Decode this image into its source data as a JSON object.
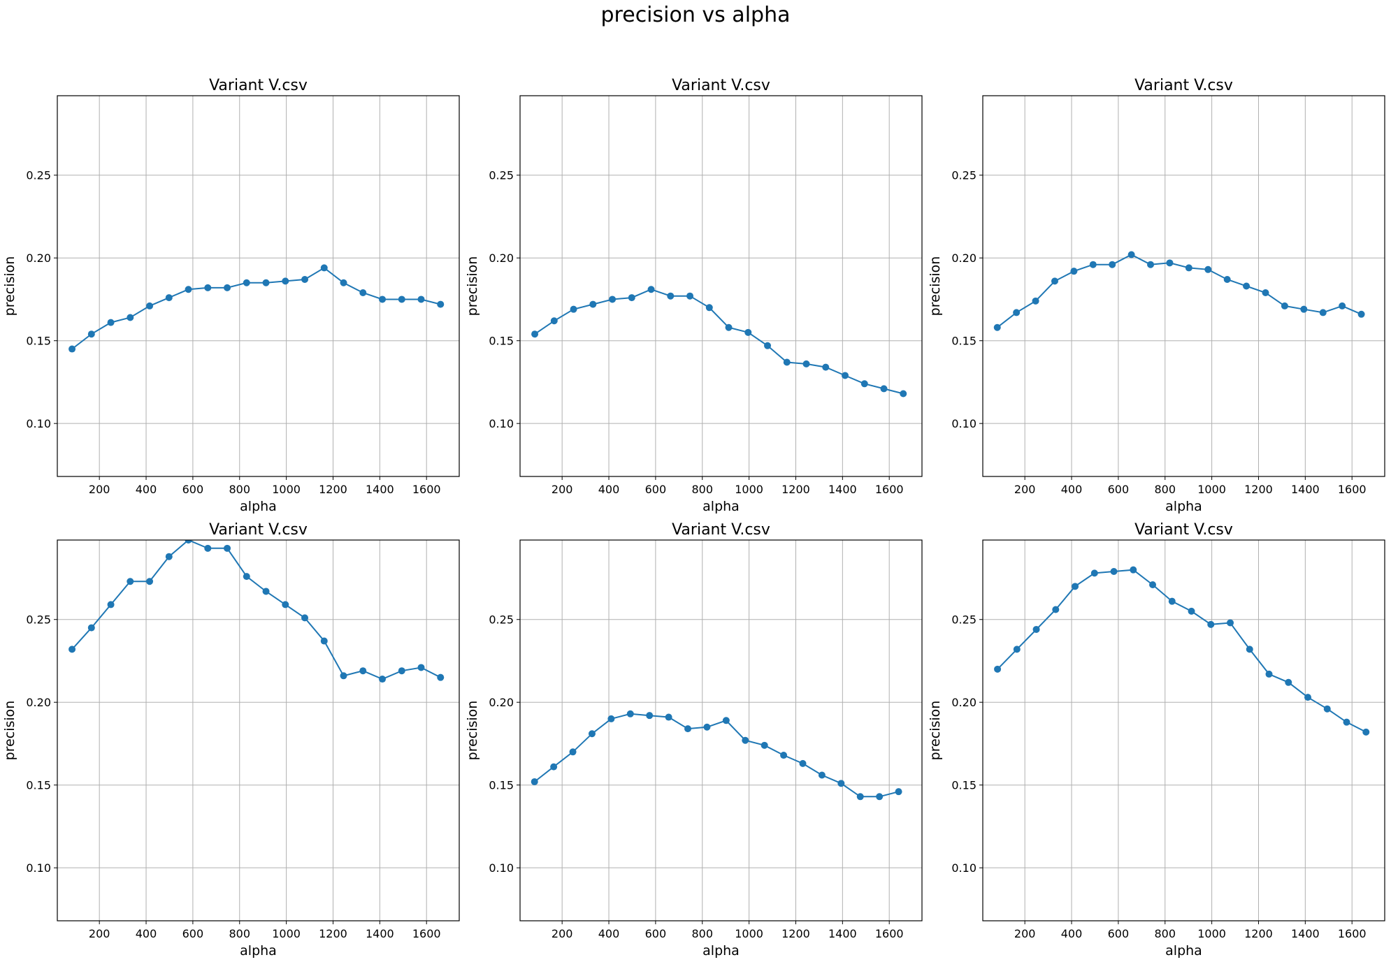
{
  "figure": {
    "suptitle": "precision vs alpha",
    "colors": {
      "line": "#1f77b4",
      "grid": "#b0b0b0",
      "axes": "#000000"
    }
  },
  "chart_data": [
    {
      "type": "line",
      "title": "Variant V.csv",
      "xlabel": "alpha",
      "ylabel": "precision",
      "xlim": [
        20,
        1740
      ],
      "ylim": [
        0.068,
        0.298
      ],
      "xticks": [
        200,
        400,
        600,
        800,
        1000,
        1200,
        1400,
        1600
      ],
      "yticks": [
        0.1,
        0.15,
        0.2,
        0.25
      ],
      "grid": true,
      "series": [
        {
          "x": [
            83,
            166,
            249,
            332,
            415,
            498,
            581,
            664,
            747,
            830,
            913,
            996,
            1079,
            1162,
            1245,
            1328,
            1411,
            1494,
            1577,
            1660
          ],
          "y": [
            0.145,
            0.154,
            0.161,
            0.164,
            0.171,
            0.176,
            0.181,
            0.182,
            0.182,
            0.185,
            0.185,
            0.186,
            0.187,
            0.194,
            0.185,
            0.179,
            0.175,
            0.175,
            0.175,
            0.172
          ]
        }
      ]
    },
    {
      "type": "line",
      "title": "Variant V.csv",
      "xlabel": "alpha",
      "ylabel": "precision",
      "xlim": [
        20,
        1740
      ],
      "ylim": [
        0.068,
        0.298
      ],
      "xticks": [
        200,
        400,
        600,
        800,
        1000,
        1200,
        1400,
        1600
      ],
      "yticks": [
        0.1,
        0.15,
        0.2,
        0.25
      ],
      "grid": true,
      "series": [
        {
          "x": [
            83,
            166,
            249,
            332,
            415,
            498,
            581,
            664,
            747,
            830,
            913,
            996,
            1079,
            1162,
            1245,
            1328,
            1411,
            1494,
            1577,
            1660
          ],
          "y": [
            0.154,
            0.162,
            0.169,
            0.172,
            0.175,
            0.176,
            0.181,
            0.177,
            0.177,
            0.17,
            0.158,
            0.155,
            0.147,
            0.137,
            0.136,
            0.134,
            0.129,
            0.124,
            0.121,
            0.118
          ]
        }
      ]
    },
    {
      "type": "line",
      "title": "Variant V.csv",
      "xlabel": "alpha",
      "ylabel": "precision",
      "xlim": [
        20,
        1740
      ],
      "ylim": [
        0.068,
        0.298
      ],
      "xticks": [
        200,
        400,
        600,
        800,
        1000,
        1200,
        1400,
        1600
      ],
      "yticks": [
        0.1,
        0.15,
        0.2,
        0.25
      ],
      "grid": true,
      "series": [
        {
          "x": [
            82,
            164,
            246,
            328,
            410,
            492,
            574,
            656,
            738,
            820,
            902,
            984,
            1066,
            1148,
            1230,
            1312,
            1394,
            1476,
            1558,
            1640
          ],
          "y": [
            0.158,
            0.167,
            0.174,
            0.186,
            0.192,
            0.196,
            0.196,
            0.202,
            0.196,
            0.197,
            0.194,
            0.193,
            0.187,
            0.183,
            0.179,
            0.171,
            0.169,
            0.167,
            0.171,
            0.166
          ]
        }
      ]
    },
    {
      "type": "line",
      "title": "Variant V.csv",
      "xlabel": "alpha",
      "ylabel": "precision",
      "xlim": [
        20,
        1740
      ],
      "ylim": [
        0.068,
        0.298
      ],
      "xticks": [
        200,
        400,
        600,
        800,
        1000,
        1200,
        1400,
        1600
      ],
      "yticks": [
        0.1,
        0.15,
        0.2,
        0.25
      ],
      "grid": true,
      "series": [
        {
          "x": [
            83,
            166,
            249,
            332,
            415,
            498,
            581,
            664,
            747,
            830,
            913,
            996,
            1079,
            1162,
            1245,
            1328,
            1411,
            1494,
            1577,
            1660
          ],
          "y": [
            0.232,
            0.245,
            0.259,
            0.273,
            0.273,
            0.288,
            0.298,
            0.293,
            0.293,
            0.276,
            0.267,
            0.259,
            0.251,
            0.237,
            0.216,
            0.219,
            0.214,
            0.219,
            0.221,
            0.215
          ]
        }
      ]
    },
    {
      "type": "line",
      "title": "Variant V.csv",
      "xlabel": "alpha",
      "ylabel": "precision",
      "xlim": [
        20,
        1740
      ],
      "ylim": [
        0.068,
        0.298
      ],
      "xticks": [
        200,
        400,
        600,
        800,
        1000,
        1200,
        1400,
        1600
      ],
      "yticks": [
        0.1,
        0.15,
        0.2,
        0.25
      ],
      "grid": true,
      "series": [
        {
          "x": [
            82,
            164,
            246,
            328,
            410,
            492,
            574,
            656,
            738,
            820,
            902,
            984,
            1066,
            1148,
            1230,
            1312,
            1394,
            1476,
            1558,
            1640
          ],
          "y": [
            0.152,
            0.161,
            0.17,
            0.181,
            0.19,
            0.193,
            0.192,
            0.191,
            0.184,
            0.185,
            0.189,
            0.177,
            0.174,
            0.168,
            0.163,
            0.156,
            0.151,
            0.143,
            0.143,
            0.146
          ]
        }
      ]
    },
    {
      "type": "line",
      "title": "Variant V.csv",
      "xlabel": "alpha",
      "ylabel": "precision",
      "xlim": [
        20,
        1740
      ],
      "ylim": [
        0.068,
        0.298
      ],
      "xticks": [
        200,
        400,
        600,
        800,
        1000,
        1200,
        1400,
        1600
      ],
      "yticks": [
        0.1,
        0.15,
        0.2,
        0.25
      ],
      "grid": true,
      "series": [
        {
          "x": [
            83,
            166,
            249,
            332,
            415,
            498,
            581,
            664,
            747,
            830,
            913,
            996,
            1079,
            1162,
            1245,
            1328,
            1411,
            1494,
            1577,
            1660
          ],
          "y": [
            0.22,
            0.232,
            0.244,
            0.256,
            0.27,
            0.278,
            0.279,
            0.28,
            0.271,
            0.261,
            0.255,
            0.247,
            0.248,
            0.232,
            0.217,
            0.212,
            0.203,
            0.196,
            0.188,
            0.182
          ]
        }
      ]
    }
  ]
}
